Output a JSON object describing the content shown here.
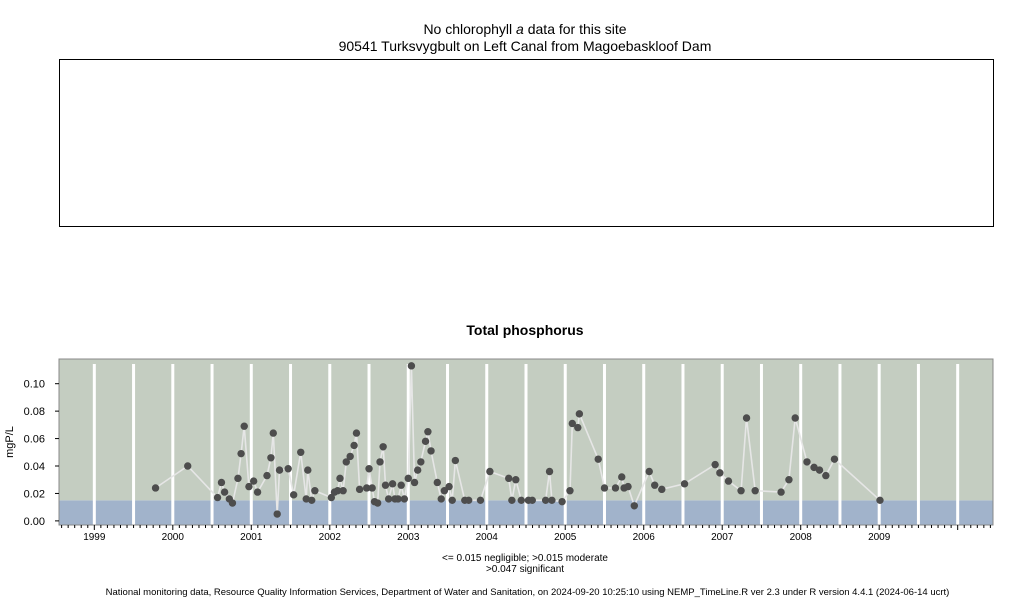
{
  "top_panel": {
    "title_prefix": "No chlorophyll",
    "title_italic": "a",
    "title_suffix": "data for this site",
    "site": "90541 Turksvygbult on Left Canal from Magoebaskloof Dam"
  },
  "chart_data": {
    "type": "scatter",
    "title": "Total phosphorus",
    "ylabel": "mgP/L",
    "xlabel": "",
    "x_tick_labels": [
      "1999",
      "2000",
      "2001",
      "2002",
      "2003",
      "2004",
      "2005",
      "2006",
      "2007",
      "2008",
      "2009"
    ],
    "y_tick_labels": [
      "0.00",
      "0.02",
      "0.04",
      "0.06",
      "0.08",
      "0.10"
    ],
    "y_ticks": [
      0,
      0.02,
      0.04,
      0.06,
      0.08,
      0.1
    ],
    "xlim": [
      1998.55,
      2010.45
    ],
    "ylim": [
      -0.003,
      0.118
    ],
    "grid": true,
    "bands": [
      {
        "label": "negligible",
        "from": -0.003,
        "to": 0.015,
        "color": "#a1b3cb"
      },
      {
        "label": "moderate",
        "from": 0.015,
        "to": 0.118,
        "color": "#c4cdc1"
      }
    ],
    "series": [
      {
        "marker_color": "#4d4d4d",
        "line_color": "#e6e6e6",
        "points": [
          [
            1999.78,
            0.024
          ],
          [
            2000.19,
            0.04
          ],
          [
            2000.57,
            0.017
          ],
          [
            2000.62,
            0.028
          ],
          [
            2000.66,
            0.021
          ],
          [
            2000.72,
            0.016
          ],
          [
            2000.76,
            0.013
          ],
          [
            2000.83,
            0.031
          ],
          [
            2000.87,
            0.049
          ],
          [
            2000.91,
            0.069
          ],
          [
            2000.97,
            0.025
          ],
          [
            2001.03,
            0.029
          ],
          [
            2001.08,
            0.021
          ],
          [
            2001.2,
            0.033
          ],
          [
            2001.25,
            0.046
          ],
          [
            2001.28,
            0.064
          ],
          [
            2001.33,
            0.005
          ],
          [
            2001.36,
            0.037
          ],
          [
            2001.47,
            0.038
          ],
          [
            2001.54,
            0.019
          ],
          [
            2001.63,
            0.05
          ],
          [
            2001.7,
            0.016
          ],
          [
            2001.72,
            0.037
          ],
          [
            2001.77,
            0.015
          ],
          [
            2001.81,
            0.022
          ],
          [
            2002.02,
            0.017
          ],
          [
            2002.06,
            0.021
          ],
          [
            2002.1,
            0.022
          ],
          [
            2002.13,
            0.031
          ],
          [
            2002.17,
            0.022
          ],
          [
            2002.21,
            0.043
          ],
          [
            2002.26,
            0.047
          ],
          [
            2002.31,
            0.055
          ],
          [
            2002.34,
            0.064
          ],
          [
            2002.38,
            0.023
          ],
          [
            2002.47,
            0.024
          ],
          [
            2002.5,
            0.038
          ],
          [
            2002.54,
            0.024
          ],
          [
            2002.57,
            0.014
          ],
          [
            2002.61,
            0.013
          ],
          [
            2002.64,
            0.043
          ],
          [
            2002.68,
            0.054
          ],
          [
            2002.71,
            0.026
          ],
          [
            2002.75,
            0.016
          ],
          [
            2002.8,
            0.027
          ],
          [
            2002.83,
            0.016
          ],
          [
            2002.87,
            0.016
          ],
          [
            2002.91,
            0.026
          ],
          [
            2002.95,
            0.016
          ],
          [
            2003.0,
            0.031
          ],
          [
            2003.04,
            0.113
          ],
          [
            2003.08,
            0.028
          ],
          [
            2003.12,
            0.037
          ],
          [
            2003.16,
            0.043
          ],
          [
            2003.22,
            0.058
          ],
          [
            2003.25,
            0.065
          ],
          [
            2003.29,
            0.051
          ],
          [
            2003.37,
            0.028
          ],
          [
            2003.42,
            0.016
          ],
          [
            2003.46,
            0.022
          ],
          [
            2003.52,
            0.025
          ],
          [
            2003.56,
            0.015
          ],
          [
            2003.6,
            0.044
          ],
          [
            2003.72,
            0.015
          ],
          [
            2003.77,
            0.015
          ],
          [
            2003.92,
            0.015
          ],
          [
            2004.04,
            0.036
          ],
          [
            2004.28,
            0.031
          ],
          [
            2004.32,
            0.015
          ],
          [
            2004.37,
            0.03
          ],
          [
            2004.44,
            0.015
          ],
          [
            2004.53,
            0.015
          ],
          [
            2004.58,
            0.015
          ],
          [
            2004.75,
            0.015
          ],
          [
            2004.8,
            0.036
          ],
          [
            2004.83,
            0.015
          ],
          [
            2004.96,
            0.014
          ],
          [
            2005.06,
            0.022
          ],
          [
            2005.09,
            0.071
          ],
          [
            2005.16,
            0.068
          ],
          [
            2005.18,
            0.078
          ],
          [
            2005.42,
            0.045
          ],
          [
            2005.5,
            0.024
          ],
          [
            2005.64,
            0.024
          ],
          [
            2005.72,
            0.032
          ],
          [
            2005.75,
            0.024
          ],
          [
            2005.8,
            0.025
          ],
          [
            2005.88,
            0.011
          ],
          [
            2006.07,
            0.036
          ],
          [
            2006.14,
            0.026
          ],
          [
            2006.23,
            0.023
          ],
          [
            2006.52,
            0.027
          ],
          [
            2006.91,
            0.041
          ],
          [
            2006.97,
            0.035
          ],
          [
            2007.08,
            0.029
          ],
          [
            2007.24,
            0.022
          ],
          [
            2007.31,
            0.075
          ],
          [
            2007.42,
            0.022
          ],
          [
            2007.75,
            0.021
          ],
          [
            2007.85,
            0.03
          ],
          [
            2007.93,
            0.075
          ],
          [
            2008.08,
            0.043
          ],
          [
            2008.17,
            0.039
          ],
          [
            2008.24,
            0.037
          ],
          [
            2008.32,
            0.033
          ],
          [
            2008.43,
            0.045
          ],
          [
            2009.01,
            0.015
          ]
        ]
      }
    ]
  },
  "notes": {
    "line1": "<= 0.015 negligible; >0.015 moderate",
    "line2": ">0.047 significant"
  },
  "footer": "National monitoring data, Resource Quality Information Services, Department of Water and Sanitation, on 2024-09-20 10:25:10 using NEMP_TimeLine.R ver 2.3 under R version 4.4.1 (2024-06-14 ucrt)"
}
